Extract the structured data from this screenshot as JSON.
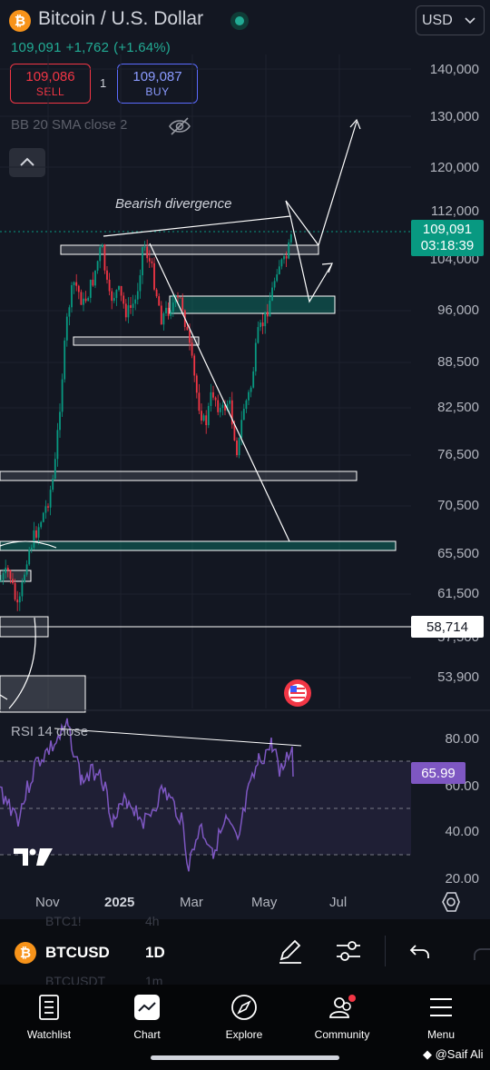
{
  "header": {
    "symbol_title": "Bitcoin / U.S. Dollar",
    "currency": "USD",
    "last_price": "109,091",
    "change": "+1,762",
    "change_pct": "(+1.64%)",
    "sell_price": "109,086",
    "sell_label": "SELL",
    "spread": "1",
    "buy_price": "109,087",
    "buy_label": "BUY",
    "indicator_legend": "BB 20 SMA close 2",
    "coin_glyph": "₿"
  },
  "chart": {
    "annotation": "Bearish divergence",
    "price_tag_value": "109,091",
    "price_tag_timer": "03:18:39",
    "level_tag": "58,714",
    "rsi_legend": "RSI 14 close",
    "rsi_value": "65.99",
    "colors": {
      "up": "#089981",
      "down": "#f23645",
      "rsi": "#7e57c2",
      "accent": "#22ab94"
    }
  },
  "chart_data": {
    "type": "candlestick",
    "price_axis": [
      "140,000",
      "130,000",
      "120,000",
      "112,000",
      "104,000",
      "96,000",
      "88,500",
      "82,500",
      "76,500",
      "70,500",
      "65,500",
      "61,500",
      "57,500",
      "53,900"
    ],
    "rsi_axis": [
      "80.00",
      "60.00",
      "40.00",
      "20.00"
    ],
    "time_axis": [
      "Nov",
      "2025",
      "Mar",
      "May",
      "Jul"
    ],
    "last_close": 109091,
    "rsi_last": 65.99
  },
  "toolbar": {
    "symbol": "BTCUSD",
    "interval": "1D",
    "ghost_symbol_1": "BTC1!",
    "ghost_interval_1": "4h",
    "ghost_symbol_2": "BTCUSDT",
    "ghost_interval_2": "1m"
  },
  "nav": {
    "items": [
      {
        "label": "Watchlist",
        "icon": "watchlist-icon"
      },
      {
        "label": "Chart",
        "icon": "chart-icon"
      },
      {
        "label": "Explore",
        "icon": "compass-icon"
      },
      {
        "label": "Community",
        "icon": "community-icon"
      },
      {
        "label": "Menu",
        "icon": "menu-icon"
      }
    ],
    "watermark": "@Saif Ali"
  }
}
